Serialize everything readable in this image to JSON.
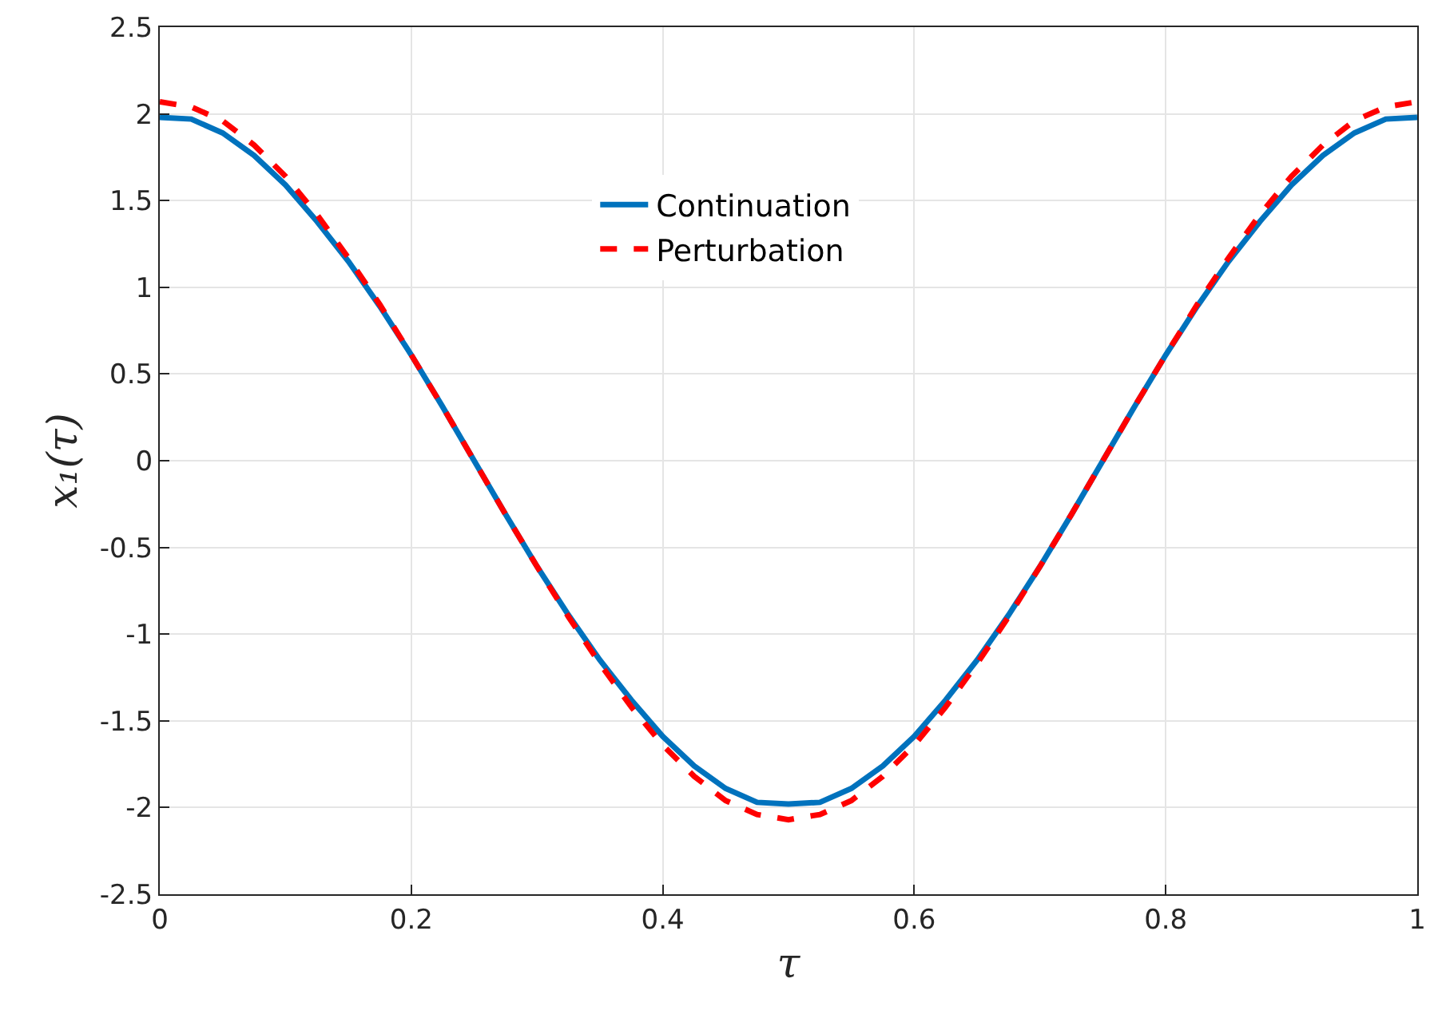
{
  "chart_data": {
    "type": "line",
    "xlabel": "τ",
    "ylabel": "x₁(τ)",
    "x": [
      0,
      0.025,
      0.05,
      0.075,
      0.1,
      0.125,
      0.15,
      0.175,
      0.2,
      0.225,
      0.25,
      0.275,
      0.3,
      0.325,
      0.35,
      0.375,
      0.4,
      0.425,
      0.45,
      0.475,
      0.5,
      0.525,
      0.55,
      0.575,
      0.6,
      0.625,
      0.65,
      0.675,
      0.7,
      0.725,
      0.75,
      0.775,
      0.8,
      0.825,
      0.85,
      0.875,
      0.9,
      0.925,
      0.95,
      0.975,
      1
    ],
    "series": [
      {
        "name": "Continuation",
        "color": "#0072bd",
        "line_style": "solid",
        "values": [
          1.98,
          1.97,
          1.89,
          1.76,
          1.59,
          1.38,
          1.15,
          0.89,
          0.61,
          0.31,
          0.0,
          -0.31,
          -0.61,
          -0.89,
          -1.15,
          -1.38,
          -1.59,
          -1.76,
          -1.89,
          -1.97,
          -1.98,
          -1.97,
          -1.89,
          -1.76,
          -1.59,
          -1.38,
          -1.15,
          -0.89,
          -0.61,
          -0.31,
          0.0,
          0.31,
          0.61,
          0.89,
          1.15,
          1.38,
          1.59,
          1.76,
          1.89,
          1.97,
          1.98
        ]
      },
      {
        "name": "Perturbation",
        "color": "#ff0000",
        "line_style": "dashed",
        "values": [
          2.07,
          2.04,
          1.96,
          1.82,
          1.64,
          1.42,
          1.17,
          0.9,
          0.61,
          0.31,
          0.0,
          -0.31,
          -0.61,
          -0.9,
          -1.17,
          -1.42,
          -1.64,
          -1.82,
          -1.96,
          -2.04,
          -2.07,
          -2.04,
          -1.96,
          -1.82,
          -1.64,
          -1.42,
          -1.17,
          -0.9,
          -0.61,
          -0.31,
          0.0,
          0.31,
          0.61,
          0.9,
          1.17,
          1.42,
          1.64,
          1.82,
          1.96,
          2.04,
          2.07
        ]
      }
    ],
    "xlim": [
      0,
      1
    ],
    "xticks": [
      0,
      0.2,
      0.4,
      0.6,
      0.8,
      1
    ],
    "ylim": [
      -2.5,
      2.5
    ],
    "yticks": [
      -2.5,
      -2,
      -1.5,
      -1,
      -0.5,
      0,
      0.5,
      1,
      1.5,
      2,
      2.5
    ],
    "grid": true,
    "legend": "top",
    "marker": "none"
  }
}
